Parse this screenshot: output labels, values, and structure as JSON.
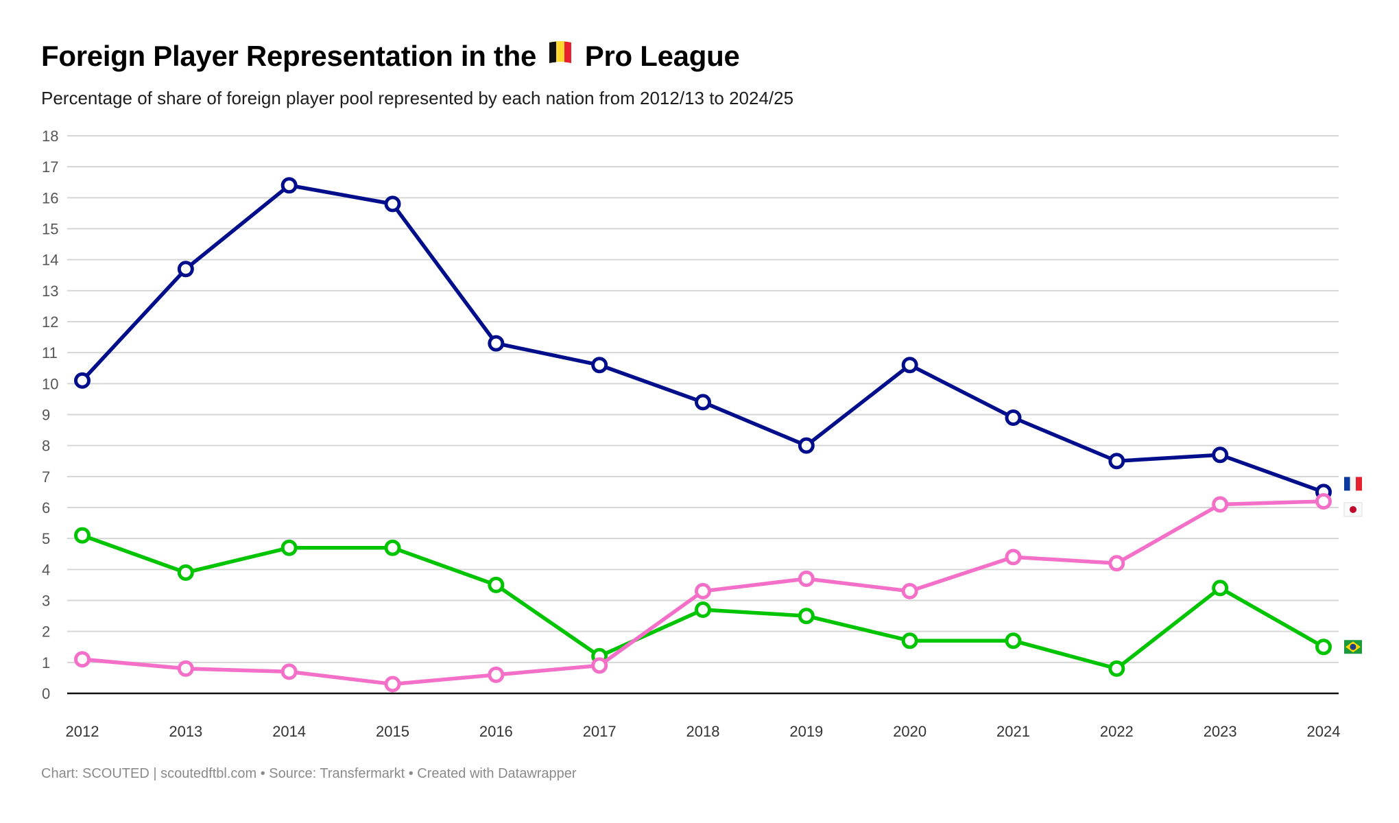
{
  "header": {
    "title_before_flag": "Foreign Player Representation in the",
    "title_flag": "belgium-flag-icon",
    "title_after_flag": "Pro League",
    "subtitle": "Percentage of share of foreign player pool represented by each nation from 2012/13 to 2024/25"
  },
  "footer": {
    "text": "Chart: SCOUTED | scoutedftbl.com • Source: Transfermarkt • Created with Datawrapper"
  },
  "chart_data": {
    "type": "line",
    "title": "Foreign Player Representation in the Belgian Pro League",
    "subtitle": "Percentage of share of foreign player pool represented by each nation from 2012/13 to 2024/25",
    "xlabel": "",
    "ylabel": "",
    "x": [
      "2012",
      "2013",
      "2014",
      "2015",
      "2016",
      "2017",
      "2018",
      "2019",
      "2020",
      "2021",
      "2022",
      "2023",
      "2024"
    ],
    "ylim": [
      0,
      18
    ],
    "yticks": [
      "0",
      "1",
      "2",
      "3",
      "4",
      "5",
      "6",
      "7",
      "8",
      "9",
      "10",
      "11",
      "12",
      "13",
      "14",
      "15",
      "16",
      "17",
      "18"
    ],
    "grid": true,
    "legend": "flag labels at line ends (right)",
    "series": [
      {
        "name": "France",
        "label_icon": "france-flag-icon",
        "color": "#000e8c",
        "values": [
          10.1,
          13.7,
          16.4,
          15.8,
          11.3,
          10.6,
          9.4,
          8.0,
          10.6,
          8.9,
          7.5,
          7.7,
          6.5
        ]
      },
      {
        "name": "Brazil",
        "label_icon": "brazil-flag-icon",
        "color": "#00c400",
        "values": [
          5.1,
          3.9,
          4.7,
          4.7,
          3.5,
          1.2,
          2.7,
          2.5,
          1.7,
          1.7,
          0.8,
          3.4,
          1.5
        ]
      },
      {
        "name": "Japan",
        "label_icon": "japan-flag-icon",
        "color": "#f46fc8",
        "values": [
          1.1,
          0.8,
          0.7,
          0.3,
          0.6,
          0.9,
          3.3,
          3.7,
          3.3,
          4.4,
          4.2,
          6.1,
          6.2
        ]
      }
    ]
  }
}
